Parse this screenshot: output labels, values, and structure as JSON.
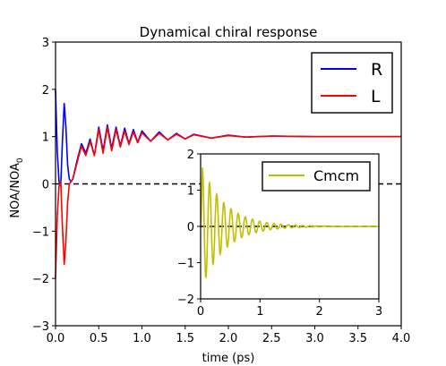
{
  "chart_data": [
    {
      "type": "line",
      "title": "Dynamical chiral response",
      "xlabel": "time (ps)",
      "ylabel": "NOA/NOA",
      "ylabel_subscript": "0",
      "xlim": [
        0,
        4
      ],
      "ylim": [
        -3,
        3
      ],
      "xticks": [
        0,
        0.5,
        1,
        1.5,
        2,
        2.5,
        3,
        3.5,
        4
      ],
      "xtick_labels": [
        "0.0",
        "0.5",
        "1.0",
        "1.5",
        "2.0",
        "2.5",
        "3.0",
        "3.5",
        "4.0"
      ],
      "yticks": [
        -3,
        -2,
        -1,
        0,
        1,
        2,
        3
      ],
      "ytick_labels": [
        "−3",
        "−2",
        "−1",
        "0",
        "1",
        "2",
        "3"
      ],
      "grid": false,
      "legend_position": "top-right",
      "reference_line": {
        "y": 0,
        "style": "dashed",
        "color": "#000000"
      },
      "series": [
        {
          "name": "R",
          "color": "#0000ff",
          "x": [
            0,
            0.02,
            0.04,
            0.06,
            0.08,
            0.1,
            0.12,
            0.14,
            0.16,
            0.18,
            0.2,
            0.25,
            0.3,
            0.35,
            0.4,
            0.45,
            0.5,
            0.55,
            0.6,
            0.65,
            0.7,
            0.75,
            0.8,
            0.85,
            0.9,
            0.95,
            1.0,
            1.1,
            1.2,
            1.3,
            1.4,
            1.5,
            1.6,
            1.8,
            2.0,
            2.2,
            2.5,
            3.0,
            3.5,
            4.0
          ],
          "y": [
            2.0,
            0.7,
            0.05,
            -0.05,
            0.9,
            1.7,
            1.2,
            0.4,
            0.1,
            0.05,
            0.1,
            0.5,
            0.85,
            0.65,
            0.95,
            0.6,
            1.2,
            0.7,
            1.25,
            0.75,
            1.2,
            0.8,
            1.18,
            0.85,
            1.15,
            0.88,
            1.12,
            0.9,
            1.1,
            0.93,
            1.07,
            0.95,
            1.05,
            0.97,
            1.03,
            0.99,
            1.01,
            1.0,
            1.0,
            1.0
          ]
        },
        {
          "name": "L",
          "color": "#ff0000",
          "x": [
            0,
            0.02,
            0.04,
            0.06,
            0.08,
            0.1,
            0.12,
            0.14,
            0.16,
            0.18,
            0.2,
            0.25,
            0.3,
            0.35,
            0.4,
            0.45,
            0.5,
            0.55,
            0.6,
            0.65,
            0.7,
            0.75,
            0.8,
            0.85,
            0.9,
            0.95,
            1.0,
            1.1,
            1.2,
            1.3,
            1.4,
            1.5,
            1.6,
            1.8,
            2.0,
            2.2,
            2.5,
            3.0,
            3.5,
            4.0
          ],
          "y": [
            -2.0,
            -0.7,
            -0.05,
            0.05,
            -0.9,
            -1.7,
            -1.2,
            -0.4,
            0.0,
            0.05,
            0.1,
            0.45,
            0.8,
            0.6,
            0.9,
            0.6,
            1.15,
            0.65,
            1.2,
            0.7,
            1.15,
            0.78,
            1.12,
            0.83,
            1.1,
            0.87,
            1.08,
            0.9,
            1.07,
            0.93,
            1.05,
            0.95,
            1.04,
            0.97,
            1.02,
            0.99,
            1.01,
            1.0,
            1.0,
            1.0
          ]
        }
      ]
    },
    {
      "type": "line",
      "title": "",
      "xlabel": "",
      "ylabel": "",
      "xlim": [
        0,
        3
      ],
      "ylim": [
        -2,
        2
      ],
      "xticks": [
        0,
        1,
        2,
        3
      ],
      "xtick_labels": [
        "0",
        "1",
        "2",
        "3"
      ],
      "yticks": [
        -2,
        -1,
        0,
        1,
        2
      ],
      "ytick_labels": [
        "−2",
        "−1",
        "0",
        "1",
        "2"
      ],
      "grid": false,
      "legend_position": "top-right",
      "reference_line": {
        "y": 0,
        "style": "dashed",
        "color": "#000000"
      },
      "series": [
        {
          "name": "Cmcm",
          "color": "#bfbf00",
          "envelope": {
            "amplitude": 1.75,
            "decay_per_ps": 2.5,
            "oscillations_per_ps": 8.3
          },
          "x": [
            0,
            3
          ]
        }
      ]
    }
  ]
}
